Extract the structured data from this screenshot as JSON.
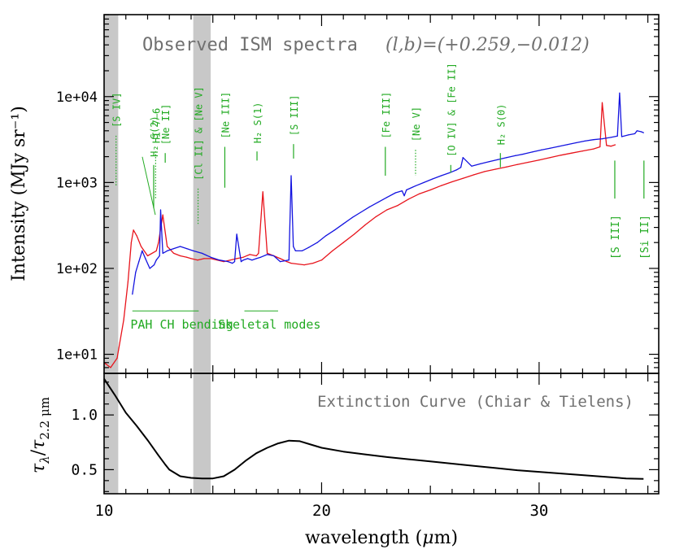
{
  "chart_data": [
    {
      "type": "line",
      "title": "Observed ISM spectra",
      "title_coords": "(l,b)=(+0.259,−0.012)",
      "ylabel": "Intensity (MJy sr⁻¹)",
      "xlabel": "",
      "y_scale": "log",
      "ylim": [
        6,
        90000
      ],
      "xlim": [
        10,
        35.5
      ],
      "y_tick_labels": [
        {
          "value": 10,
          "label": "1e+01"
        },
        {
          "value": 100,
          "label": "1e+02"
        },
        {
          "value": 1000,
          "label": "1e+03"
        },
        {
          "value": 10000,
          "label": "1e+04"
        }
      ],
      "colors": {
        "module_a": "#e8141c",
        "module_b": "#1414e0",
        "annotation": "#22aa22",
        "band": "#c8c8c8"
      },
      "shaded_bands": [
        {
          "x0": 10.0,
          "x1": 10.65
        },
        {
          "x0": 14.1,
          "x1": 14.9
        }
      ],
      "series": [
        {
          "color": "#e8141c",
          "x": [
            10.0,
            10.3,
            10.6,
            10.9,
            11.1,
            11.25,
            11.35,
            11.5,
            11.7,
            12.0,
            12.4,
            12.5,
            12.7,
            12.9,
            13.0,
            13.2,
            13.5,
            13.8,
            14.0,
            14.3,
            14.6,
            14.9,
            15.2,
            15.5,
            15.8,
            16.1,
            16.4,
            16.7,
            17.0,
            17.1,
            17.3,
            17.5,
            17.8,
            18.1,
            18.4,
            18.6,
            19.2,
            19.6,
            20.0,
            20.5,
            21.0,
            21.5,
            22.0,
            22.5,
            23.0,
            23.5,
            24.0,
            24.5,
            25.0,
            25.5,
            26.0,
            26.5,
            27.0,
            27.5,
            28.0,
            28.5,
            29.0,
            29.5,
            30.0,
            30.5,
            31.0,
            31.5,
            32.0,
            32.5,
            32.8,
            32.9,
            33.1,
            33.3,
            33.5
          ],
          "y": [
            8,
            7,
            9,
            25,
            70,
            200,
            280,
            240,
            180,
            140,
            160,
            200,
            420,
            180,
            170,
            150,
            140,
            135,
            130,
            125,
            130,
            130,
            125,
            120,
            125,
            130,
            135,
            145,
            140,
            150,
            780,
            150,
            140,
            130,
            120,
            115,
            110,
            115,
            125,
            160,
            200,
            250,
            320,
            400,
            480,
            540,
            640,
            740,
            820,
            920,
            1020,
            1120,
            1230,
            1340,
            1430,
            1520,
            1620,
            1720,
            1830,
            1950,
            2080,
            2200,
            2330,
            2460,
            2600,
            8500,
            2700,
            2650,
            2750
          ]
        },
        {
          "color": "#1414e0",
          "x": [
            11.3,
            11.45,
            11.6,
            11.75,
            11.9,
            12.1,
            12.3,
            12.4,
            12.55,
            12.6,
            12.7,
            12.9,
            13.2,
            13.5,
            13.8,
            14.1,
            14.5,
            14.9,
            15.3,
            15.7,
            15.9,
            16.0,
            16.1,
            16.3,
            16.4,
            16.6,
            16.8,
            17.0,
            17.2,
            17.5,
            17.8,
            18.1,
            18.5,
            18.6,
            18.7,
            18.8,
            19.1,
            19.4,
            19.8,
            20.2,
            20.6,
            21.0,
            21.4,
            21.8,
            22.2,
            22.6,
            23.0,
            23.4,
            23.7,
            23.8,
            23.9,
            24.3,
            24.7,
            25.1,
            25.5,
            25.9,
            26.2,
            26.4,
            26.5,
            26.9,
            27.3,
            27.7,
            28.1,
            28.5,
            28.9,
            29.3,
            29.7,
            30.1,
            30.5,
            30.9,
            31.3,
            31.7,
            32.1,
            32.5,
            32.9,
            33.3,
            33.6,
            33.7,
            33.8,
            34.1,
            34.4,
            34.5,
            34.7,
            34.8
          ],
          "y": [
            50,
            90,
            120,
            160,
            130,
            100,
            110,
            125,
            140,
            480,
            150,
            160,
            170,
            180,
            170,
            160,
            150,
            135,
            125,
            120,
            115,
            120,
            250,
            120,
            125,
            130,
            125,
            130,
            135,
            145,
            140,
            120,
            125,
            1200,
            180,
            160,
            160,
            175,
            200,
            240,
            280,
            330,
            390,
            450,
            520,
            590,
            670,
            760,
            800,
            700,
            820,
            910,
            1000,
            1100,
            1200,
            1300,
            1400,
            1500,
            1950,
            1550,
            1650,
            1750,
            1850,
            1950,
            2050,
            2150,
            2270,
            2390,
            2510,
            2630,
            2760,
            2900,
            3040,
            3150,
            3230,
            3350,
            3480,
            11000,
            3420,
            3580,
            3700,
            4000,
            3900,
            3800
          ]
        }
      ],
      "line_labels": [
        {
          "name": "[S IV]",
          "x": 10.55,
          "line_top": 3500,
          "line_bottom": 900,
          "dotted": true,
          "rotated": true,
          "label_y": 9000
        },
        {
          "name": "H₂ S(2)",
          "x": 12.28,
          "line_top": 1600,
          "line_bottom": 500,
          "dotted": false,
          "rotated": true,
          "label_y": 3600,
          "leader": true
        },
        {
          "name": "HI 7–6",
          "x": 12.37,
          "line_top": 2300,
          "line_bottom": 650,
          "dotted": true,
          "rotated": true,
          "label_y": 3600
        },
        {
          "name": "[Ne II]",
          "x": 12.81,
          "line_top": 2200,
          "line_bottom": 1700,
          "dotted": false,
          "rotated": true,
          "label_y": 3600
        },
        {
          "name": "[Cl II] & [Ne V]",
          "x": 14.32,
          "line_top": 850,
          "line_bottom": 330,
          "dotted": true,
          "rotated": true,
          "label_y": 2400
        },
        {
          "name": "[Ne III]",
          "x": 15.55,
          "line_top": 2600,
          "line_bottom": 870,
          "dotted": false,
          "rotated": true,
          "label_y": 6000
        },
        {
          "name": "H₂ S(1)",
          "x": 17.03,
          "line_top": 2300,
          "line_bottom": 1800,
          "dotted": false,
          "rotated": true,
          "label_y": 5000
        },
        {
          "name": "[S III]",
          "x": 18.71,
          "line_top": 2800,
          "line_bottom": 1900,
          "dotted": false,
          "rotated": true,
          "label_y": 5500
        },
        {
          "name": "[Fe III]",
          "x": 22.93,
          "line_top": 2600,
          "line_bottom": 1200,
          "dotted": false,
          "rotated": true,
          "label_y": 6000
        },
        {
          "name": "[Ne V]",
          "x": 24.32,
          "line_top": 2400,
          "line_bottom": 1200,
          "dotted": true,
          "rotated": true,
          "label_y": 6000
        },
        {
          "name": "[O IV] & [Fe II]",
          "x": 25.94,
          "line_top": 1600,
          "line_bottom": 1300,
          "dotted": false,
          "rotated": true,
          "label_y": 3600
        },
        {
          "name": "H₂ S(0)",
          "x": 28.22,
          "line_top": 2200,
          "line_bottom": 1500,
          "dotted": false,
          "rotated": true,
          "label_y": 4500
        },
        {
          "name": "[S III]",
          "x": 33.48,
          "line_top": 1800,
          "line_bottom": 650,
          "dotted": false,
          "rotated": true,
          "label_y": 200,
          "label_below": true
        },
        {
          "name": "[Si II]",
          "x": 34.82,
          "line_top": 1800,
          "line_bottom": 650,
          "dotted": false,
          "rotated": true,
          "label_y": 200,
          "label_below": true
        }
      ],
      "band_annotations": [
        {
          "name": "PAH CH bending",
          "x0": 11.3,
          "x1": 14.35,
          "y": 32
        },
        {
          "name": "Skeletal modes",
          "x0": 16.45,
          "x1": 18.0,
          "y": 32
        }
      ]
    },
    {
      "type": "line",
      "title": "Extinction Curve (Chiar & Tielens)",
      "ylabel": "τλ/τ2.2 μm",
      "ylabel_parts": {
        "main": "τ",
        "sub1": "λ",
        "slash": "/",
        "main2": "τ",
        "sub2": "2.2 μm"
      },
      "xlabel": "wavelength (μm)",
      "xlabel_parts": {
        "text": "wavelength (",
        "mu": "μ",
        "rest": "m)"
      },
      "xlim": [
        10,
        35.5
      ],
      "ylim": [
        0.28,
        1.38
      ],
      "x_tick_labels": [
        {
          "value": 10,
          "label": "10"
        },
        {
          "value": 20,
          "label": "20"
        },
        {
          "value": 30,
          "label": "30"
        }
      ],
      "y_tick_labels": [
        {
          "value": 0.5,
          "label": "0.5"
        },
        {
          "value": 1.0,
          "label": "1.0"
        }
      ],
      "series": [
        {
          "color": "#000000",
          "x": [
            10.0,
            10.5,
            11.0,
            11.5,
            12.0,
            12.5,
            12.8,
            13.0,
            13.5,
            14.0,
            14.5,
            15.0,
            15.5,
            16.0,
            16.5,
            17.0,
            17.5,
            18.0,
            18.5,
            19.0,
            19.5,
            20.0,
            21.0,
            22.0,
            23.0,
            24.0,
            25.0,
            26.0,
            27.0,
            28.0,
            29.0,
            30.0,
            31.0,
            32.0,
            33.0,
            34.0,
            34.8
          ],
          "y": [
            1.33,
            1.18,
            1.02,
            0.9,
            0.77,
            0.63,
            0.55,
            0.5,
            0.44,
            0.425,
            0.42,
            0.42,
            0.44,
            0.5,
            0.58,
            0.65,
            0.7,
            0.74,
            0.765,
            0.76,
            0.73,
            0.7,
            0.665,
            0.64,
            0.615,
            0.595,
            0.575,
            0.555,
            0.535,
            0.515,
            0.495,
            0.48,
            0.465,
            0.45,
            0.435,
            0.42,
            0.415
          ]
        }
      ]
    }
  ]
}
